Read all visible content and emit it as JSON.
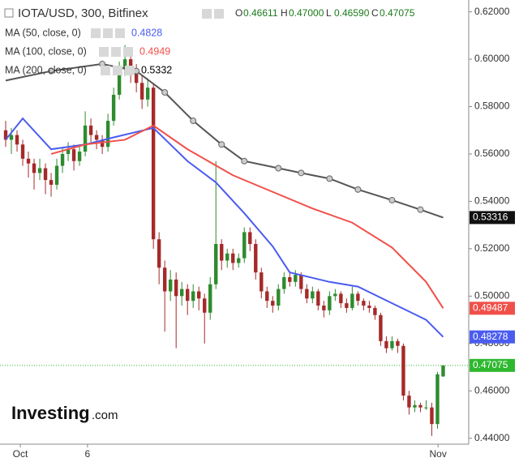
{
  "chart_data": {
    "type": "candlestick",
    "title": "IOTA/USD, 300, Bitfinex",
    "ohlc_header": [
      "O",
      "0.46611",
      "H",
      "0.47000",
      "L",
      "0.46590",
      "C",
      "0.47075"
    ],
    "watermark": [
      "Investing",
      ".com"
    ],
    "up_color": "#2e8b2e",
    "down_color": "#a52a2a",
    "xlim": [
      -0.5,
      82
    ],
    "xticks": [
      {
        "value": 3.07,
        "label": "Oct"
      },
      {
        "value": 14.9,
        "label": "6"
      },
      {
        "value": 76.6,
        "label": "Nov"
      }
    ],
    "ylim": [
      0.4375,
      0.625
    ],
    "yticks": [
      {
        "value": 0.44,
        "label": "0.44000"
      },
      {
        "value": 0.46,
        "label": "0.46000"
      },
      {
        "value": 0.48,
        "label": "0.48000"
      },
      {
        "value": 0.5,
        "label": "0.50000"
      },
      {
        "value": 0.52,
        "label": "0.52000"
      },
      {
        "value": 0.54,
        "label": "0.54000"
      },
      {
        "value": 0.56,
        "label": "0.56000"
      },
      {
        "value": 0.58,
        "label": "0.58000"
      },
      {
        "value": 0.6,
        "label": "0.60000"
      },
      {
        "value": 0.62,
        "label": "0.62000"
      }
    ],
    "last_price": {
      "value": 0.47075,
      "label": "0.47075",
      "color": "#2eb82e"
    },
    "ohlc": [
      [
        0.57,
        0.574,
        0.563,
        0.566
      ],
      [
        0.566,
        0.571,
        0.56,
        0.568
      ],
      [
        0.568,
        0.57,
        0.561,
        0.564
      ],
      [
        0.564,
        0.566,
        0.555,
        0.558
      ],
      [
        0.558,
        0.561,
        0.55,
        0.556
      ],
      [
        0.556,
        0.558,
        0.545,
        0.552
      ],
      [
        0.552,
        0.558,
        0.549,
        0.554
      ],
      [
        0.554,
        0.556,
        0.543,
        0.549
      ],
      [
        0.549,
        0.552,
        0.542,
        0.547
      ],
      [
        0.547,
        0.558,
        0.545,
        0.555
      ],
      [
        0.555,
        0.563,
        0.552,
        0.56
      ],
      [
        0.56,
        0.565,
        0.557,
        0.562
      ],
      [
        0.562,
        0.564,
        0.553,
        0.557
      ],
      [
        0.557,
        0.564,
        0.555,
        0.561
      ],
      [
        0.561,
        0.578,
        0.559,
        0.572
      ],
      [
        0.572,
        0.575,
        0.565,
        0.568
      ],
      [
        0.568,
        0.57,
        0.562,
        0.566
      ],
      [
        0.566,
        0.568,
        0.56,
        0.563
      ],
      [
        0.563,
        0.577,
        0.561,
        0.574
      ],
      [
        0.574,
        0.588,
        0.572,
        0.585
      ],
      [
        0.585,
        0.599,
        0.583,
        0.596
      ],
      [
        0.596,
        0.606,
        0.593,
        0.6
      ],
      [
        0.6,
        0.602,
        0.59,
        0.595
      ],
      [
        0.595,
        0.598,
        0.586,
        0.59
      ],
      [
        0.59,
        0.593,
        0.579,
        0.583
      ],
      [
        0.583,
        0.592,
        0.58,
        0.588
      ],
      [
        0.588,
        0.59,
        0.52,
        0.524
      ],
      [
        0.524,
        0.527,
        0.505,
        0.512
      ],
      [
        0.512,
        0.515,
        0.485,
        0.502
      ],
      [
        0.502,
        0.511,
        0.498,
        0.507
      ],
      [
        0.507,
        0.51,
        0.478,
        0.5
      ],
      [
        0.5,
        0.506,
        0.496,
        0.503
      ],
      [
        0.503,
        0.505,
        0.492,
        0.498
      ],
      [
        0.498,
        0.505,
        0.495,
        0.502
      ],
      [
        0.502,
        0.504,
        0.494,
        0.499
      ],
      [
        0.499,
        0.501,
        0.48,
        0.493
      ],
      [
        0.493,
        0.508,
        0.49,
        0.505
      ],
      [
        0.505,
        0.557,
        0.503,
        0.522
      ],
      [
        0.522,
        0.524,
        0.511,
        0.515
      ],
      [
        0.515,
        0.52,
        0.512,
        0.518
      ],
      [
        0.518,
        0.52,
        0.511,
        0.514
      ],
      [
        0.514,
        0.518,
        0.512,
        0.516
      ],
      [
        0.516,
        0.529,
        0.514,
        0.527
      ],
      [
        0.527,
        0.529,
        0.519,
        0.522
      ],
      [
        0.522,
        0.524,
        0.507,
        0.51
      ],
      [
        0.51,
        0.512,
        0.499,
        0.502
      ],
      [
        0.502,
        0.504,
        0.495,
        0.498
      ],
      [
        0.498,
        0.5,
        0.493,
        0.496
      ],
      [
        0.496,
        0.505,
        0.494,
        0.503
      ],
      [
        0.503,
        0.51,
        0.501,
        0.508
      ],
      [
        0.508,
        0.51,
        0.504,
        0.506
      ],
      [
        0.506,
        0.511,
        0.504,
        0.509
      ],
      [
        0.509,
        0.51,
        0.501,
        0.503
      ],
      [
        0.503,
        0.505,
        0.497,
        0.499
      ],
      [
        0.499,
        0.504,
        0.497,
        0.502
      ],
      [
        0.502,
        0.503,
        0.494,
        0.496
      ],
      [
        0.496,
        0.498,
        0.491,
        0.494
      ],
      [
        0.494,
        0.502,
        0.492,
        0.5
      ],
      [
        0.5,
        0.503,
        0.498,
        0.501
      ],
      [
        0.501,
        0.502,
        0.495,
        0.497
      ],
      [
        0.497,
        0.499,
        0.493,
        0.495
      ],
      [
        0.495,
        0.504,
        0.494,
        0.501
      ],
      [
        0.501,
        0.502,
        0.496,
        0.498
      ],
      [
        0.498,
        0.499,
        0.494,
        0.496
      ],
      [
        0.496,
        0.498,
        0.493,
        0.495
      ],
      [
        0.495,
        0.496,
        0.49,
        0.492
      ],
      [
        0.492,
        0.493,
        0.479,
        0.481
      ],
      [
        0.481,
        0.483,
        0.476,
        0.478
      ],
      [
        0.478,
        0.483,
        0.477,
        0.481
      ],
      [
        0.481,
        0.482,
        0.476,
        0.479
      ],
      [
        0.479,
        0.48,
        0.456,
        0.458
      ],
      [
        0.458,
        0.46,
        0.45,
        0.453
      ],
      [
        0.453,
        0.456,
        0.451,
        0.454
      ],
      [
        0.454,
        0.455,
        0.451,
        0.453
      ],
      [
        0.453,
        0.456,
        0.452,
        0.453
      ],
      [
        0.453,
        0.455,
        0.441,
        0.446
      ],
      [
        0.446,
        0.468,
        0.444,
        0.467
      ],
      [
        0.46611,
        0.47,
        0.4659,
        0.47075
      ]
    ],
    "series": [
      {
        "name": "MA (50, close, 0)",
        "color": "#4a5cf0",
        "value_label": "0.4828",
        "last_label": "0.48278",
        "last_value": 0.48278,
        "x": [
          0,
          3,
          8,
          14,
          19,
          26,
          32,
          37,
          42,
          47,
          50,
          57,
          62,
          68,
          74,
          77
        ],
        "values": [
          0.566,
          0.575,
          0.562,
          0.564,
          0.567,
          0.571,
          0.557,
          0.548,
          0.535,
          0.521,
          0.51,
          0.506,
          0.504,
          0.497,
          0.49,
          0.48278
        ]
      },
      {
        "name": "MA (100, close, 0)",
        "color": "#f0504a",
        "value_label": "0.4949",
        "last_label": "0.49487",
        "last_value": 0.49487,
        "x": [
          8,
          14,
          21,
          26,
          32,
          40,
          47,
          54,
          61,
          68,
          74,
          77
        ],
        "values": [
          0.56,
          0.564,
          0.566,
          0.572,
          0.562,
          0.551,
          0.544,
          0.537,
          0.531,
          0.5205,
          0.506,
          0.49487
        ]
      },
      {
        "name": "MA (200, close, 0)",
        "color": "#555555",
        "value_label": "0.5332",
        "last_label": "0.53316",
        "last_value": 0.53316,
        "x": [
          0,
          8,
          17,
          23,
          28,
          33,
          38,
          42,
          48,
          52,
          57,
          62,
          68,
          73,
          77
        ],
        "values": [
          0.591,
          0.595,
          0.598,
          0.595,
          0.586,
          0.574,
          0.564,
          0.557,
          0.554,
          0.552,
          0.5496,
          0.545,
          0.5405,
          0.5365,
          0.53316
        ]
      }
    ]
  }
}
